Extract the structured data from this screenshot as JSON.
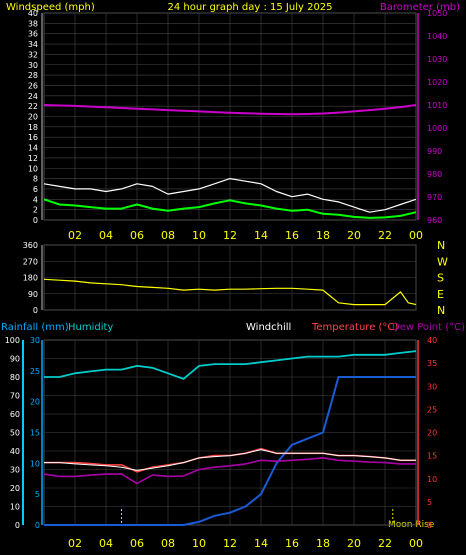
{
  "top_panel": {
    "title_left": "Windspeed (mph)",
    "title_center": "24 hour graph day : 15 July 2025",
    "title_right": "Barometer (mb)"
  },
  "middle_panel": {
    "direction_labels": [
      "N",
      "W",
      "S",
      "E",
      "N"
    ]
  },
  "bottom_panel": {
    "title_rainfall": "Rainfall (mm)",
    "title_humidity": "Humidity",
    "title_windchill": "Windchill",
    "title_temperature": "Temperature (°C)",
    "title_dewpoint": "Dew Point (°C)",
    "moon_rise": "Moon Rise"
  },
  "colors": {
    "background": "#000000",
    "grid": "#444444",
    "title": "#ffff00",
    "windspeed": "#ffffff",
    "windspeed_avg": "#00ff00",
    "barometer": "#cc00cc",
    "wind_direction": "#ffff00",
    "humidity": "#00cccc",
    "rainfall": "#1a5bd6",
    "temperature": "#ff4444",
    "dew_point": "#aa00aa",
    "windchill": "#ffffff",
    "left_axis_rain": "#00aaff",
    "right_axis_temp": "#ff3333"
  },
  "chart_data": [
    {
      "type": "line",
      "panel": "wind",
      "title": "24 hour graph day : 15 July 2025",
      "ylabel_left": "Windspeed (mph)",
      "ylabel_right": "Barometer (mb)",
      "x_tick_labels": [
        "02",
        "04",
        "06",
        "08",
        "10",
        "12",
        "14",
        "16",
        "18",
        "20",
        "22",
        "00"
      ],
      "y_left_ticks": [
        0,
        2,
        4,
        6,
        8,
        10,
        12,
        14,
        16,
        18,
        20,
        22,
        24,
        26,
        28,
        30,
        32,
        34,
        36,
        38,
        40
      ],
      "y_left_lim": [
        0,
        40
      ],
      "y_right_ticks": [
        960,
        970,
        980,
        990,
        1000,
        1010,
        1020,
        1030,
        1040,
        1050
      ],
      "y_right_lim": [
        960,
        1050
      ],
      "x_hours": [
        0,
        1,
        2,
        3,
        4,
        5,
        6,
        7,
        8,
        9,
        10,
        11,
        12,
        13,
        14,
        15,
        16,
        17,
        18,
        19,
        20,
        21,
        22,
        23,
        24
      ],
      "series": [
        {
          "name": "Windspeed (mph)",
          "axis": "left",
          "values": [
            7,
            6.5,
            6,
            6,
            5.5,
            6,
            7,
            6.5,
            5,
            5.5,
            6,
            7,
            8,
            7.5,
            7,
            5.5,
            4.5,
            5,
            4,
            3.5,
            2.5,
            1.5,
            2,
            3,
            4
          ]
        },
        {
          "name": "Average",
          "axis": "left",
          "values": [
            4,
            3,
            2.8,
            2.5,
            2.2,
            2.2,
            3,
            2.2,
            1.8,
            2.2,
            2.5,
            3.2,
            3.8,
            3.2,
            2.8,
            2.2,
            1.8,
            2.0,
            1.2,
            1.0,
            0.6,
            0.4,
            0.5,
            0.8,
            1.5
          ]
        },
        {
          "name": "Barometer (mb)",
          "axis": "right",
          "values": [
            1010,
            1009.8,
            1009.6,
            1009.3,
            1009.0,
            1008.7,
            1008.4,
            1008.1,
            1007.8,
            1007.5,
            1007.2,
            1006.9,
            1006.6,
            1006.4,
            1006.2,
            1006.1,
            1006.0,
            1006.1,
            1006.3,
            1006.7,
            1007.2,
            1007.8,
            1008.4,
            1009.1,
            1010
          ]
        }
      ]
    },
    {
      "type": "line",
      "panel": "direction",
      "y_ticks": [
        0,
        90,
        180,
        270,
        360
      ],
      "y_lim": [
        0,
        360
      ],
      "x_hours": [
        0,
        1,
        2,
        3,
        4,
        5,
        6,
        7,
        8,
        9,
        10,
        11,
        12,
        13,
        14,
        15,
        16,
        17,
        18,
        19,
        20,
        21,
        22,
        23,
        23.5,
        24
      ],
      "series": [
        {
          "name": "Wind Direction",
          "values": [
            170,
            165,
            160,
            150,
            145,
            140,
            130,
            125,
            120,
            110,
            115,
            110,
            115,
            115,
            118,
            120,
            120,
            115,
            110,
            40,
            30,
            30,
            30,
            100,
            40,
            30
          ]
        }
      ]
    },
    {
      "type": "line",
      "panel": "temperature",
      "ylabel_left": "Rainfall (mm)",
      "ylabel_right": "Temperature (°C)",
      "y_left_outer_ticks": [
        0,
        10,
        20,
        30,
        40,
        50,
        60,
        70,
        80,
        90,
        100
      ],
      "y_left_outer_lim": [
        0,
        100
      ],
      "y_left_inner_ticks": [
        0,
        5,
        10,
        15,
        20,
        25,
        30
      ],
      "y_left_inner_lim": [
        0,
        30
      ],
      "y_right_ticks": [
        0,
        5,
        10,
        15,
        20,
        25,
        30,
        35,
        40
      ],
      "y_right_lim": [
        0,
        40
      ],
      "x_tick_labels": [
        "02",
        "04",
        "06",
        "08",
        "10",
        "12",
        "14",
        "16",
        "18",
        "20",
        "22",
        "00"
      ],
      "x_hours": [
        0,
        1,
        2,
        3,
        4,
        5,
        6,
        7,
        8,
        9,
        10,
        11,
        12,
        13,
        14,
        15,
        16,
        17,
        18,
        19,
        20,
        21,
        22,
        23,
        24
      ],
      "series": [
        {
          "name": "Humidity",
          "axis": "outer",
          "values": [
            80,
            80,
            82,
            83,
            84,
            84,
            86,
            85,
            82,
            79,
            86,
            87,
            87,
            87,
            88,
            89,
            90,
            91,
            91,
            91,
            92,
            92,
            92,
            93,
            94
          ]
        },
        {
          "name": "Rainfall (mm)",
          "axis": "inner",
          "values": [
            0,
            0,
            0,
            0,
            0,
            0,
            0,
            0,
            0,
            0,
            0.5,
            1.5,
            2,
            3,
            5,
            10,
            13,
            14,
            15,
            24,
            24,
            24,
            24,
            24,
            24
          ]
        },
        {
          "name": "Temperature (°C)",
          "axis": "right",
          "values": [
            13.5,
            13.5,
            13.5,
            13.3,
            13.0,
            13.0,
            11.5,
            12.5,
            13.0,
            13.5,
            14.5,
            15.0,
            15.0,
            15.5,
            16.5,
            15.5,
            15.5,
            15.5,
            15.5,
            15.0,
            15.0,
            14.8,
            14.5,
            14.0,
            14.0
          ]
        },
        {
          "name": "Windchill",
          "axis": "right",
          "values": [
            13.5,
            13.5,
            13.2,
            13.0,
            12.8,
            12.5,
            11.8,
            12.3,
            12.8,
            13.5,
            14.5,
            14.8,
            15.0,
            15.5,
            16.3,
            15.5,
            15.5,
            15.5,
            15.5,
            15.0,
            15.0,
            14.8,
            14.5,
            14.0,
            14.0
          ]
        },
        {
          "name": "Dew Point (°C)",
          "axis": "right",
          "values": [
            11,
            10.5,
            10.5,
            10.8,
            11,
            11,
            9,
            10.8,
            10.5,
            10.6,
            12,
            12.5,
            12.8,
            13.2,
            14,
            13.8,
            14,
            14.2,
            14.5,
            14,
            13.8,
            13.6,
            13.5,
            13.2,
            13.2
          ]
        }
      ]
    }
  ]
}
